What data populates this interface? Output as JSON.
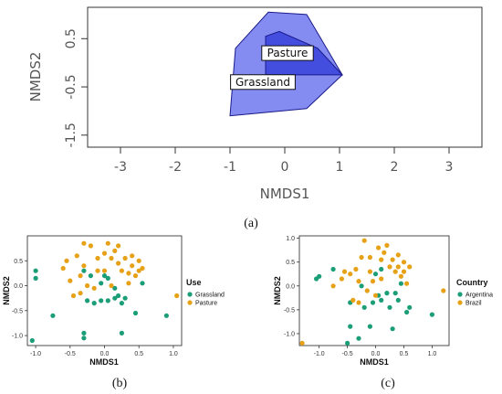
{
  "chart_data": [
    {
      "panel": "(a)",
      "type": "area",
      "xlabel": "NMDS1",
      "ylabel": "NMDS2",
      "xticks": [
        "-3",
        "-2",
        "-1",
        "0",
        "1",
        "2",
        "3"
      ],
      "yticks": [
        "0.5",
        "-0.5",
        "-1.5"
      ],
      "xlim": [
        -3.6,
        3.6
      ],
      "ylim": [
        -1.75,
        1.15
      ],
      "series": [
        {
          "name": "Grassland",
          "color": "#6e78f0",
          "polygon": [
            [
              -0.9,
              0.3
            ],
            [
              -0.3,
              1.05
            ],
            [
              0.4,
              1.0
            ],
            [
              1.05,
              -0.25
            ],
            [
              0.4,
              -0.95
            ],
            [
              -1.0,
              -1.1
            ]
          ]
        },
        {
          "name": "Pasture",
          "color": "#3c46dc",
          "polygon": [
            [
              -0.35,
              0.55
            ],
            [
              -0.1,
              0.65
            ],
            [
              0.6,
              0.3
            ],
            [
              1.05,
              -0.25
            ],
            [
              -0.35,
              -0.25
            ]
          ]
        }
      ],
      "labels": [
        {
          "text": "Pasture",
          "x": 0.05,
          "y": 0.2
        },
        {
          "text": "Grassland",
          "x": -0.4,
          "y": -0.4
        }
      ]
    },
    {
      "panel": "(b)",
      "type": "scatter",
      "xlabel": "NMDS1",
      "ylabel": "NMDS2",
      "xticks": [
        "-1.0",
        "-0.5",
        "0.0",
        "0.5",
        "1.0"
      ],
      "yticks": [
        "-1.0",
        "-0.5",
        "0.0",
        "0.5"
      ],
      "xlim": [
        -1.12,
        1.12
      ],
      "ylim": [
        -1.2,
        1.0
      ],
      "legend_title": "Use",
      "legend_position": "right",
      "series": [
        {
          "name": "Grassland",
          "color": "#1b9e77",
          "points": [
            [
              -1.0,
              0.3
            ],
            [
              -1.0,
              0.15
            ],
            [
              -0.75,
              -0.6
            ],
            [
              -1.05,
              -1.1
            ],
            [
              -0.3,
              -0.95
            ],
            [
              -0.3,
              -1.05
            ],
            [
              -0.25,
              -0.3
            ],
            [
              -0.2,
              0.2
            ],
            [
              -0.15,
              -0.35
            ],
            [
              -0.05,
              -0.3
            ],
            [
              -0.05,
              0.05
            ],
            [
              0.0,
              0.2
            ],
            [
              0.05,
              0.15
            ],
            [
              0.05,
              -0.3
            ],
            [
              0.15,
              -0.05
            ],
            [
              0.2,
              -0.2
            ],
            [
              0.25,
              -0.35
            ],
            [
              0.25,
              -0.95
            ],
            [
              0.3,
              -0.25
            ],
            [
              0.45,
              -0.55
            ],
            [
              0.55,
              0.05
            ],
            [
              0.9,
              -0.6
            ],
            [
              -0.3,
              0.3
            ],
            [
              0.15,
              -0.25
            ]
          ]
        },
        {
          "name": "Pasture",
          "color": "#e6a117",
          "points": [
            [
              -0.6,
              0.35
            ],
            [
              -0.55,
              0.5
            ],
            [
              -0.5,
              0.1
            ],
            [
              -0.45,
              -0.2
            ],
            [
              -0.4,
              0.6
            ],
            [
              -0.35,
              0.2
            ],
            [
              -0.35,
              -0.15
            ],
            [
              -0.3,
              0.85
            ],
            [
              -0.3,
              0.4
            ],
            [
              -0.25,
              0.0
            ],
            [
              -0.2,
              0.8
            ],
            [
              -0.15,
              -0.05
            ],
            [
              -0.1,
              0.55
            ],
            [
              -0.1,
              0.3
            ],
            [
              0.0,
              0.3
            ],
            [
              0.0,
              0.65
            ],
            [
              0.05,
              0.85
            ],
            [
              0.1,
              0.55
            ],
            [
              0.1,
              0.0
            ],
            [
              0.15,
              0.7
            ],
            [
              0.2,
              0.8
            ],
            [
              0.2,
              0.45
            ],
            [
              0.25,
              0.3
            ],
            [
              0.3,
              0.55
            ],
            [
              0.35,
              0.25
            ],
            [
              0.35,
              0.05
            ],
            [
              0.4,
              0.6
            ],
            [
              0.4,
              0.4
            ],
            [
              0.45,
              0.2
            ],
            [
              0.5,
              0.5
            ],
            [
              0.5,
              0.3
            ],
            [
              0.55,
              0.35
            ],
            [
              1.05,
              -0.2
            ]
          ]
        }
      ]
    },
    {
      "panel": "(c)",
      "type": "scatter",
      "xlabel": "NMDS1",
      "ylabel": "NMDS2",
      "xticks": [
        "-1.0",
        "-0.5",
        "0.0",
        "0.5",
        "1.0"
      ],
      "yticks": [
        "-1.0",
        "-0.5",
        "0.0",
        "0.5",
        "1.0"
      ],
      "xlim": [
        -1.35,
        1.3
      ],
      "ylim": [
        -1.25,
        1.05
      ],
      "legend_title": "Country",
      "legend_position": "right",
      "series": [
        {
          "name": "Argentina",
          "color": "#1b9e77",
          "points": [
            [
              -1.05,
              0.15
            ],
            [
              -1.0,
              0.2
            ],
            [
              -0.75,
              0.35
            ],
            [
              -0.45,
              -0.35
            ],
            [
              -0.45,
              -0.85
            ],
            [
              -0.5,
              -1.2
            ],
            [
              -0.3,
              -1.1
            ],
            [
              -0.2,
              -0.45
            ],
            [
              -0.1,
              -0.85
            ],
            [
              -0.05,
              -0.35
            ],
            [
              0.0,
              0.25
            ],
            [
              0.05,
              -0.2
            ],
            [
              0.1,
              -0.3
            ],
            [
              0.2,
              -0.15
            ],
            [
              0.25,
              -0.45
            ],
            [
              0.3,
              -0.9
            ],
            [
              0.35,
              -0.15
            ],
            [
              0.45,
              0.05
            ],
            [
              0.55,
              -0.55
            ],
            [
              0.6,
              -0.45
            ],
            [
              1.0,
              -0.6
            ],
            [
              0.1,
              0.35
            ],
            [
              -0.25,
              0.0
            ],
            [
              0.4,
              -0.3
            ]
          ]
        },
        {
          "name": "Brazil",
          "color": "#e6a117",
          "points": [
            [
              -1.3,
              -1.2
            ],
            [
              -0.75,
              0.0
            ],
            [
              -0.6,
              0.15
            ],
            [
              -0.55,
              0.3
            ],
            [
              -0.45,
              0.25
            ],
            [
              -0.4,
              -0.3
            ],
            [
              -0.35,
              0.35
            ],
            [
              -0.3,
              0.1
            ],
            [
              -0.25,
              0.6
            ],
            [
              -0.2,
              0.95
            ],
            [
              -0.15,
              -0.1
            ],
            [
              -0.1,
              0.6
            ],
            [
              -0.1,
              0.3
            ],
            [
              -0.05,
              0.1
            ],
            [
              0.0,
              -0.2
            ],
            [
              0.05,
              0.8
            ],
            [
              0.1,
              0.55
            ],
            [
              0.1,
              0.15
            ],
            [
              0.15,
              0.7
            ],
            [
              0.2,
              0.85
            ],
            [
              0.25,
              0.4
            ],
            [
              0.3,
              0.55
            ],
            [
              0.35,
              0.3
            ],
            [
              0.4,
              0.65
            ],
            [
              0.4,
              0.4
            ],
            [
              0.45,
              0.2
            ],
            [
              0.5,
              0.5
            ],
            [
              0.5,
              0.3
            ],
            [
              0.55,
              0.05
            ],
            [
              0.6,
              0.4
            ],
            [
              1.2,
              -0.1
            ],
            [
              -0.3,
              -0.35
            ]
          ]
        }
      ]
    }
  ]
}
